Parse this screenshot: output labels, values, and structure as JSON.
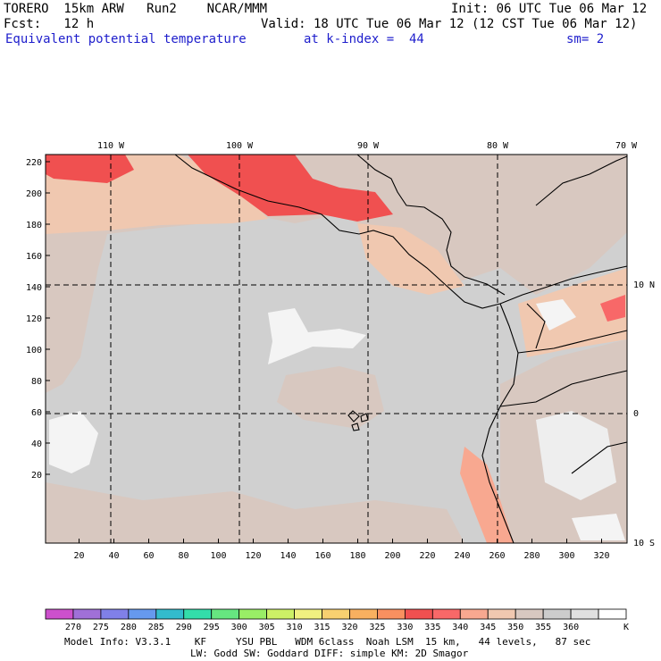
{
  "header": {
    "model": "TORERO  15km ARW   Run2    NCAR/MMM",
    "init": "Init: 06 UTC Tue 06 Mar 12",
    "fcst": "Fcst:   12 h",
    "valid": "Valid: 18 UTC Tue 06 Mar 12 (12 CST Tue 06 Mar 12)",
    "field": "Equivalent potential temperature",
    "level": "at k-index =  44",
    "smooth": "sm= 2"
  },
  "map": {
    "lon_labels": [
      "110 W",
      "100 W",
      "90 W",
      "80 W",
      "70 W"
    ],
    "lat_labels": [
      "10 N",
      "0",
      "10 S"
    ],
    "y_ticks": [
      "220",
      "200",
      "180",
      "160",
      "140",
      "120",
      "100",
      "80",
      "60",
      "40",
      "20"
    ],
    "x_ticks": [
      "20",
      "40",
      "60",
      "80",
      "100",
      "120",
      "140",
      "160",
      "180",
      "200",
      "220",
      "240",
      "260",
      "280",
      "300",
      "320"
    ]
  },
  "colorbar": {
    "labels": [
      "270",
      "275",
      "280",
      "285",
      "290",
      "295",
      "300",
      "305",
      "310",
      "315",
      "320",
      "325",
      "330",
      "335",
      "340",
      "345",
      "350",
      "355",
      "360"
    ],
    "unit": "K",
    "colors": [
      "#cc50cc",
      "#a070d8",
      "#8080e8",
      "#6699ee",
      "#33bbcc",
      "#33ddaa",
      "#66e680",
      "#99ee66",
      "#ccf066",
      "#f0f080",
      "#f8d070",
      "#f8b060",
      "#f89060",
      "#f05050",
      "#f86868",
      "#f8a890",
      "#f0c8b0",
      "#d8c8c0",
      "#cccccc",
      "#e0e0e0",
      "#ffffff"
    ]
  },
  "footer": {
    "line1": "Model Info: V3.3.1    KF     YSU PBL   WDM 6class  Noah LSM  15 km,   44 levels,   87 sec",
    "line2": "LW: Godd SW: Goddard DIFF: simple KM: 2D Smagor"
  }
}
